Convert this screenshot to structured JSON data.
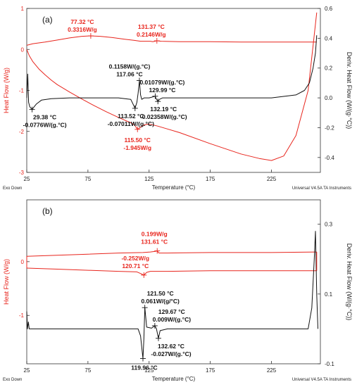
{
  "colors": {
    "heat_flow": "#e8251d",
    "deriv": "#111111",
    "frame": "#333333"
  },
  "chart_data": [
    {
      "panel": "(a)",
      "type": "line",
      "xlabel": "Temperature (°C)",
      "ylabel_left": "Heat Flow (W/g)",
      "ylabel_right": "Deriv. Heat Flow (W/(g·°C))",
      "footer_left": "Exo Down",
      "footer_right": "Universal V4.5A TA Instruments",
      "xlim": [
        25,
        265
      ],
      "ylim_left": [
        -3,
        1
      ],
      "ylim_right": [
        -0.5,
        0.6
      ],
      "xticks": [
        25,
        75,
        125,
        175,
        225
      ],
      "yticks_left": [
        -3,
        -2,
        -1,
        0,
        1
      ],
      "yticks_right": [
        -0.4,
        -0.2,
        0.0,
        0.2,
        0.4,
        0.6
      ],
      "series": [
        {
          "axis": "left",
          "x": [
            25,
            30,
            40,
            50,
            60,
            70,
            77.32,
            85,
            95,
            105,
            113,
            118,
            122,
            126,
            128,
            131.37,
            135,
            150,
            175,
            200,
            225,
            250,
            262
          ],
          "y": [
            0.1,
            0.14,
            0.18,
            0.23,
            0.28,
            0.32,
            0.33,
            0.32,
            0.29,
            0.25,
            0.22,
            0.2,
            0.2,
            0.2,
            0.19,
            0.21,
            0.2,
            0.19,
            0.19,
            0.18,
            0.18,
            0.18,
            0.18
          ]
        },
        {
          "axis": "left",
          "x": [
            25,
            27,
            30,
            35,
            40,
            45,
            50,
            60,
            70,
            80,
            90,
            100,
            110,
            113,
            115.5,
            118,
            121,
            125,
            132,
            140,
            150,
            175,
            200,
            215,
            225,
            235,
            245,
            255,
            262
          ],
          "y": [
            0.0,
            -0.15,
            -0.3,
            -0.48,
            -0.62,
            -0.75,
            -0.86,
            -1.04,
            -1.21,
            -1.37,
            -1.52,
            -1.66,
            -1.79,
            -1.84,
            -1.95,
            -1.9,
            -1.84,
            -1.82,
            -1.87,
            -1.94,
            -2.03,
            -2.3,
            -2.55,
            -2.66,
            -2.71,
            -2.6,
            -2.1,
            -1.0,
            0.9
          ]
        },
        {
          "axis": "right",
          "x": [
            25,
            25.8,
            26.5,
            27.5,
            29.38,
            31,
            33,
            37,
            45,
            60,
            80,
            100,
            110,
            113.52,
            115,
            116,
            117.06,
            118,
            119,
            121,
            125,
            129.99,
            130.5,
            132.19,
            133.5,
            136,
            150,
            175,
            200,
            225,
            245,
            252,
            256,
            259,
            261,
            262
          ],
          "y": [
            0.0,
            0.16,
            -0.03,
            -0.06,
            -0.078,
            -0.06,
            -0.04,
            -0.015,
            -0.005,
            0.0,
            0.0,
            0.0,
            -0.01,
            -0.07,
            -0.03,
            0.03,
            0.116,
            0.02,
            -0.01,
            0.0,
            0.0,
            0.011,
            0.0,
            -0.024,
            -0.01,
            0.0,
            0.0,
            0.0,
            0.0,
            0.0,
            0.02,
            0.05,
            0.1,
            0.2,
            0.3,
            0.42
          ]
        }
      ],
      "annotations": [
        {
          "x": 77.32,
          "y": 0.33,
          "axis": "left",
          "lines": [
            "77.32 °C",
            "0.3316W/g"
          ],
          "color": "red",
          "pos": "above",
          "dx": -12,
          "dy": 0
        },
        {
          "x": 131.37,
          "y": 0.21,
          "axis": "left",
          "lines": [
            "131.37 °C",
            "0.2146W/g"
          ],
          "color": "red",
          "pos": "above",
          "dx": -8,
          "dy": 0
        },
        {
          "x": 117.06,
          "y": 0.116,
          "axis": "right",
          "lines": [
            "0.1158W/(g.°C)",
            "117.06 °C"
          ],
          "color": "black",
          "pos": "above",
          "dx": -14,
          "dy": 0
        },
        {
          "x": 29.38,
          "y": -0.078,
          "axis": "right",
          "lines": [
            "29.38 °C",
            "-0.0776W/(g.°C)"
          ],
          "color": "black",
          "pos": "below",
          "dx": 18,
          "dy": 0
        },
        {
          "x": 113.52,
          "y": -0.07,
          "axis": "right",
          "lines": [
            "113.52 °C",
            "-0.07011W/(g.°C)"
          ],
          "color": "black",
          "pos": "below",
          "dx": -6,
          "dy": 0
        },
        {
          "x": 129.99,
          "y": 0.011,
          "axis": "right",
          "lines": [
            "0.01079W/(g.°C)",
            "129.99 °C"
          ],
          "color": "black",
          "pos": "above",
          "dx": 10,
          "dy": 0
        },
        {
          "x": 132.19,
          "y": -0.024,
          "axis": "right",
          "lines": [
            "132.19 °C",
            "-0.02358W/(g.°C)"
          ],
          "color": "black",
          "pos": "below",
          "dx": 8,
          "dy": 0
        },
        {
          "x": 115.5,
          "y": -1.95,
          "axis": "left",
          "lines": [
            "115.50 °C",
            "-1.945W/g"
          ],
          "color": "red",
          "pos": "below",
          "dx": 0,
          "dy": 4
        }
      ]
    },
    {
      "panel": "(b)",
      "type": "line",
      "xlabel": "Temperature (°C)",
      "ylabel_left": "Heat Flow (W/g)",
      "ylabel_right": "Deriv. Heat Flow (W/(g·°C))",
      "footer_left": "Exo Down",
      "footer_right": "Universal V4.5A TA Instruments",
      "xlim": [
        25,
        265
      ],
      "ylim_left": [
        -1.9,
        1.15
      ],
      "ylim_right": [
        -0.1,
        0.37
      ],
      "xticks": [
        25,
        75,
        125,
        175,
        225
      ],
      "yticks_left": [
        -1,
        0
      ],
      "yticks_right": [
        -0.1,
        0.1,
        0.3
      ],
      "series": [
        {
          "axis": "left",
          "x": [
            25,
            50,
            75,
            100,
            120,
            126,
            130,
            131.61,
            133,
            140,
            175,
            225,
            262
          ],
          "y": [
            0.1,
            0.12,
            0.14,
            0.16,
            0.17,
            0.18,
            0.19,
            0.2,
            0.16,
            0.16,
            0.17,
            0.17,
            0.18
          ],
          "close_to_start": true
        },
        {
          "axis": "left",
          "x": [
            25,
            50,
            75,
            100,
            115,
            118,
            120.71,
            123,
            126,
            140,
            175,
            225,
            262
          ],
          "y": [
            -0.12,
            -0.14,
            -0.16,
            -0.18,
            -0.19,
            -0.22,
            -0.25,
            -0.2,
            -0.18,
            -0.18,
            -0.17,
            -0.17,
            -0.17
          ],
          "close_to_start": true
        },
        {
          "axis": "right",
          "x": [
            25,
            25.6,
            26.3,
            27,
            29,
            40,
            80,
            110,
            116,
            118,
            119.96,
            120.7,
            121.5,
            123,
            127,
            129.67,
            131,
            132.62,
            134,
            140,
            175,
            225,
            255,
            258,
            260,
            261,
            262,
            263
          ],
          "y": [
            0.05,
            0.0,
            0.02,
            0.0,
            0.0,
            0.0,
            0.0,
            0.0,
            0.0,
            -0.02,
            -0.085,
            -0.03,
            0.061,
            0.005,
            0.002,
            0.009,
            0.0,
            -0.027,
            -0.005,
            0.0,
            0.0,
            0.0,
            0.0,
            0.06,
            0.2,
            0.28,
            0.1,
            0.0
          ]
        }
      ],
      "annotations": [
        {
          "x": 131.61,
          "y": 0.2,
          "axis": "left",
          "lines": [
            "0.199W/g",
            "131.61 °C"
          ],
          "color": "red",
          "pos": "above",
          "dx": -4,
          "dy": -4
        },
        {
          "x": 120.71,
          "y": -0.25,
          "axis": "left",
          "lines": [
            "-0.252W/g",
            "120.71 °C"
          ],
          "color": "red",
          "pos": "above",
          "dx": -12,
          "dy": -4
        },
        {
          "x": 121.5,
          "y": 0.061,
          "axis": "right",
          "lines": [
            "121.50 °C",
            "0.061W/(g/°C)"
          ],
          "color": "black",
          "pos": "above",
          "dx": 22,
          "dy": 0
        },
        {
          "x": 129.67,
          "y": 0.009,
          "axis": "right",
          "lines": [
            "129.67 °C",
            "0.009W/(g.°C)"
          ],
          "color": "black",
          "pos": "above",
          "dx": 24,
          "dy": 0
        },
        {
          "x": 132.62,
          "y": -0.027,
          "axis": "right",
          "lines": [
            "132.62 °C",
            "-0.027W/(g.°C)"
          ],
          "color": "black",
          "pos": "below",
          "dx": 18,
          "dy": 0
        },
        {
          "x": 119.96,
          "y": -0.085,
          "axis": "right",
          "lines": [
            "119.96 °C"
          ],
          "color": "black",
          "pos": "below",
          "dx": 2,
          "dy": 2
        }
      ]
    }
  ]
}
